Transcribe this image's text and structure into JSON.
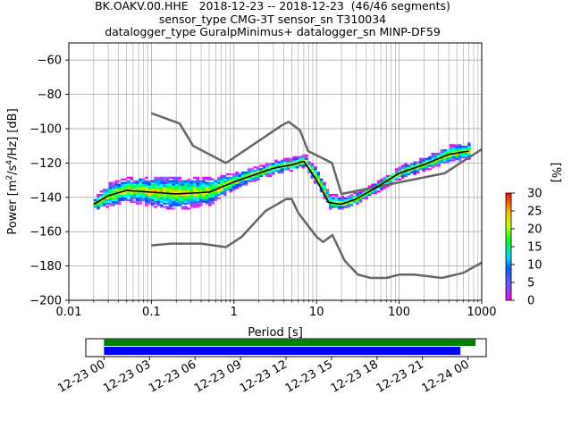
{
  "title_lines": [
    "BK.OAKV.00.HHE   2018-12-23 -- 2018-12-23  (46/46 segments)",
    "sensor_type CMG-3T sensor_sn T310034",
    "datalogger_type GuralpMinimus+ datalogger_sn MINP-DF59"
  ],
  "chart_data": [
    {
      "type": "heatmap",
      "xlabel": "Period [s]",
      "ylabel_parts": [
        "Power [m",
        "2",
        "/s",
        "4",
        "/Hz] [dB]"
      ],
      "x_scale": "log",
      "xlim": [
        0.01,
        1000
      ],
      "ylim": [
        -200,
        -50
      ],
      "x_ticks": [
        0.01,
        0.1,
        1,
        10,
        100,
        1000
      ],
      "x_tick_labels": [
        "0.01",
        "0.1",
        "1",
        "10",
        "100",
        "1000"
      ],
      "y_ticks": [
        -200,
        -180,
        -160,
        -140,
        -120,
        -100,
        -80,
        -60
      ],
      "y_tick_labels": [
        "−200",
        "−180",
        "−160",
        "−140",
        "−120",
        "−100",
        "−80",
        "−60"
      ],
      "grid": true,
      "noise_model_high": {
        "x": [
          0.1,
          0.22,
          0.32,
          0.8,
          3.8,
          4.6,
          6.3,
          7.9,
          15.4,
          20,
          354.8,
          1000
        ],
        "y": [
          -91,
          -97,
          -110,
          -120,
          -98,
          -96,
          -101,
          -113,
          -120,
          -138,
          -126,
          -112
        ]
      },
      "noise_model_low": {
        "x": [
          0.1,
          0.17,
          0.4,
          0.8,
          1.24,
          2.4,
          4.3,
          5,
          6,
          10,
          12,
          15.6,
          21.9,
          31.6,
          45,
          70,
          101,
          154,
          328,
          600,
          1000
        ],
        "y": [
          -168,
          -167,
          -167,
          -169,
          -163,
          -148,
          -141,
          -141,
          -149,
          -163,
          -166,
          -162,
          -177,
          -185,
          -187,
          -187,
          -185,
          -185,
          -187,
          -184,
          -178
        ]
      },
      "mean_curve": {
        "x": [
          0.02,
          0.03,
          0.05,
          0.1,
          0.2,
          0.5,
          1,
          2,
          3,
          5,
          7,
          10,
          14,
          20,
          30,
          50,
          100,
          200,
          400,
          700
        ],
        "y": [
          -144,
          -139,
          -136,
          -137,
          -138,
          -137,
          -131,
          -126,
          -123,
          -121,
          -119,
          -130,
          -143,
          -144,
          -141,
          -135,
          -126,
          -121,
          -115,
          -113
        ]
      },
      "spread_db": {
        "x": [
          0.02,
          0.03,
          0.05,
          0.1,
          0.2,
          0.5,
          1,
          2,
          5,
          7,
          10,
          14,
          20,
          50,
          100,
          200,
          400,
          700
        ],
        "y": [
          3,
          6,
          6,
          8,
          9,
          7,
          4,
          3,
          3,
          3,
          4,
          4,
          3,
          2,
          3,
          3,
          4,
          4
        ]
      },
      "colorbar": {
        "label": "[%]",
        "range": [
          0,
          30
        ],
        "ticks": [
          0,
          5,
          10,
          15,
          20,
          25,
          30
        ]
      }
    },
    {
      "type": "bar",
      "name": "segment timeline",
      "x_tick_labels": [
        "12-23 00",
        "12-23 03",
        "12-23 06",
        "12-23 09",
        "12-23 12",
        "12-23 15",
        "12-23 18",
        "12-23 21",
        "12-24 00"
      ],
      "xlim_hours": [
        -1.2,
        25.2
      ],
      "series": [
        {
          "color": "#008000",
          "start_hour": 0,
          "end_hour": 24.5
        },
        {
          "color": "#0000ff",
          "start_hour": 0,
          "end_hour": 23.5
        }
      ]
    }
  ]
}
